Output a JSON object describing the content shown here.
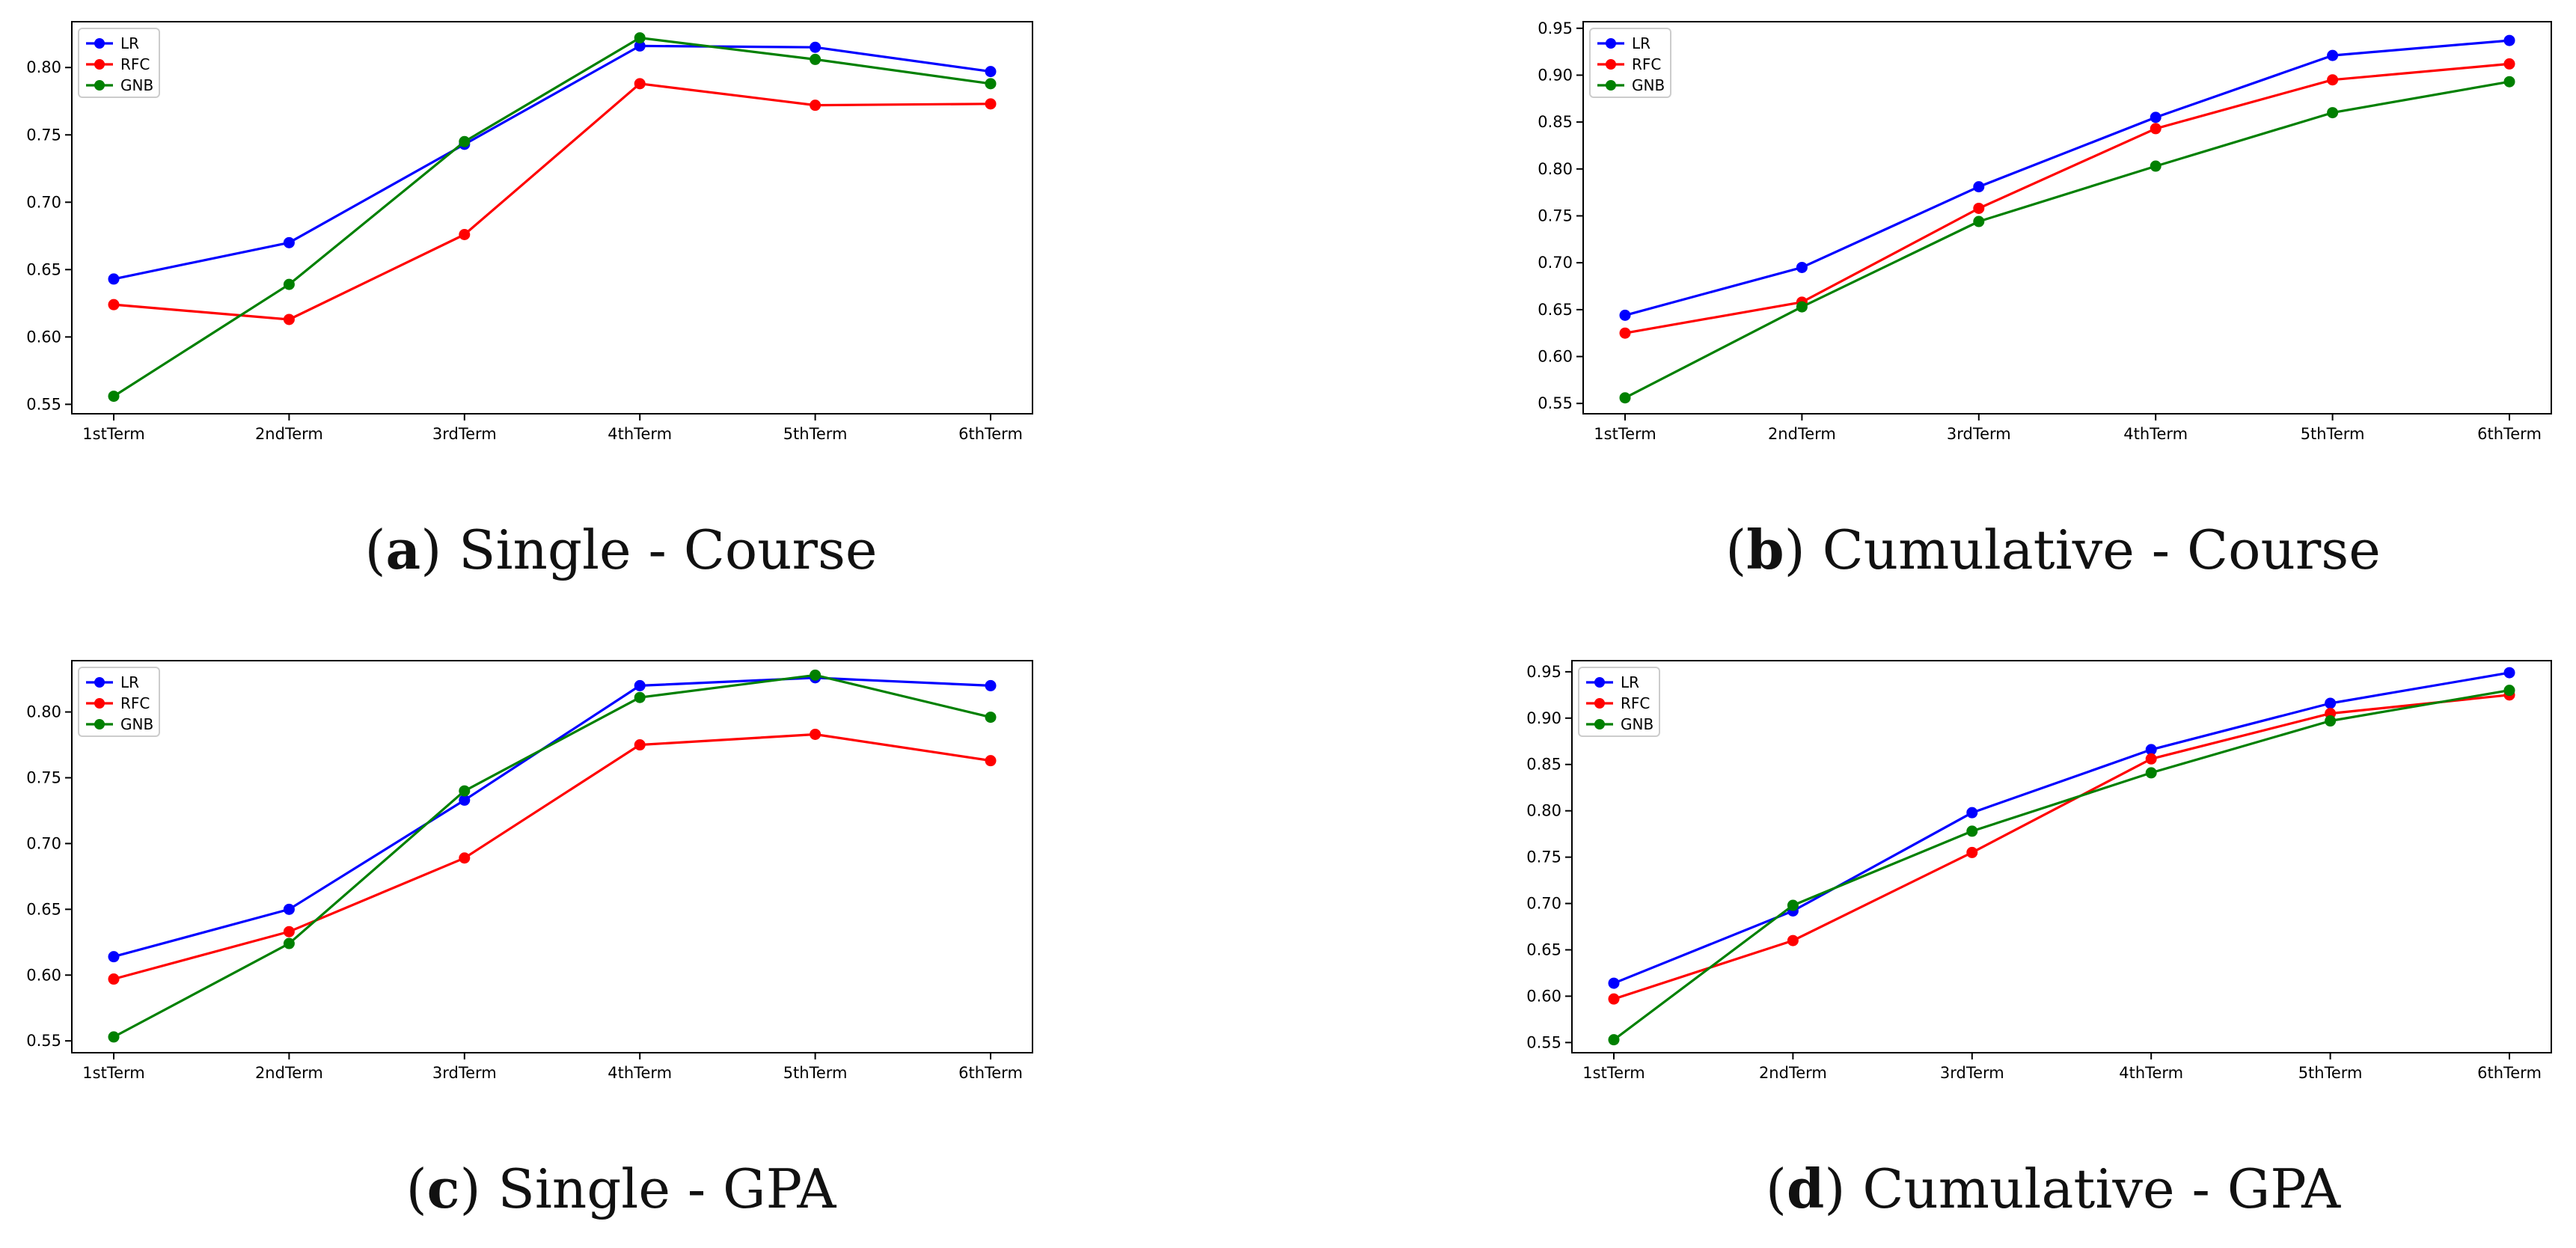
{
  "chart_data": [
    {
      "type": "line",
      "id": "a",
      "categories": [
        "1stTerm",
        "2ndTerm",
        "3rdTerm",
        "4thTerm",
        "5thTerm",
        "6thTerm"
      ],
      "series": [
        {
          "name": "LR",
          "color": "#0000ff",
          "values": [
            0.643,
            0.67,
            0.743,
            0.816,
            0.815,
            0.797
          ]
        },
        {
          "name": "RFC",
          "color": "#ff0000",
          "values": [
            0.624,
            0.613,
            0.676,
            0.788,
            0.772,
            0.773
          ]
        },
        {
          "name": "GNB",
          "color": "#008000",
          "values": [
            0.556,
            0.639,
            0.745,
            0.822,
            0.806,
            0.788
          ]
        }
      ],
      "ylim": [
        0.543,
        0.834
      ],
      "yticks": [
        0.55,
        0.6,
        0.65,
        0.7,
        0.75,
        0.8
      ],
      "ytick_labels": [
        "0.55",
        "0.60",
        "0.65",
        "0.70",
        "0.75",
        "0.80"
      ],
      "legend": "top-left",
      "caption_letter": "a",
      "caption_rest": " Single - Course"
    },
    {
      "type": "line",
      "id": "b",
      "categories": [
        "1stTerm",
        "2ndTerm",
        "3rdTerm",
        "4thTerm",
        "5thTerm",
        "6thTerm"
      ],
      "series": [
        {
          "name": "LR",
          "color": "#0000ff",
          "values": [
            0.644,
            0.695,
            0.781,
            0.855,
            0.921,
            0.937
          ]
        },
        {
          "name": "RFC",
          "color": "#ff0000",
          "values": [
            0.625,
            0.658,
            0.758,
            0.843,
            0.895,
            0.912
          ]
        },
        {
          "name": "GNB",
          "color": "#008000",
          "values": [
            0.556,
            0.653,
            0.744,
            0.803,
            0.86,
            0.893
          ]
        }
      ],
      "ylim": [
        0.539,
        0.957
      ],
      "yticks": [
        0.55,
        0.6,
        0.65,
        0.7,
        0.75,
        0.8,
        0.85,
        0.9,
        0.95
      ],
      "ytick_labels": [
        "0.55",
        "0.60",
        "0.65",
        "0.70",
        "0.75",
        "0.80",
        "0.85",
        "0.90",
        "0.95"
      ],
      "legend": "top-left",
      "caption_letter": "b",
      "caption_rest": " Cumulative - Course"
    },
    {
      "type": "line",
      "id": "c",
      "categories": [
        "1stTerm",
        "2ndTerm",
        "3rdTerm",
        "4thTerm",
        "5thTerm",
        "6thTerm"
      ],
      "series": [
        {
          "name": "LR",
          "color": "#0000ff",
          "values": [
            0.614,
            0.65,
            0.733,
            0.82,
            0.826,
            0.82
          ]
        },
        {
          "name": "RFC",
          "color": "#ff0000",
          "values": [
            0.597,
            0.633,
            0.689,
            0.775,
            0.783,
            0.763
          ]
        },
        {
          "name": "GNB",
          "color": "#008000",
          "values": [
            0.553,
            0.624,
            0.74,
            0.811,
            0.828,
            0.796
          ]
        }
      ],
      "ylim": [
        0.541,
        0.839
      ],
      "yticks": [
        0.55,
        0.6,
        0.65,
        0.7,
        0.75,
        0.8
      ],
      "ytick_labels": [
        "0.55",
        "0.60",
        "0.65",
        "0.70",
        "0.75",
        "0.80"
      ],
      "legend": "top-left",
      "caption_letter": "c",
      "caption_rest": " Single - GPA"
    },
    {
      "type": "line",
      "id": "d",
      "categories": [
        "1stTerm",
        "2ndTerm",
        "3rdTerm",
        "4thTerm",
        "5thTerm",
        "6thTerm"
      ],
      "series": [
        {
          "name": "LR",
          "color": "#0000ff",
          "values": [
            0.614,
            0.692,
            0.798,
            0.866,
            0.916,
            0.949
          ]
        },
        {
          "name": "RFC",
          "color": "#ff0000",
          "values": [
            0.597,
            0.66,
            0.755,
            0.856,
            0.905,
            0.925
          ]
        },
        {
          "name": "GNB",
          "color": "#008000",
          "values": [
            0.553,
            0.698,
            0.778,
            0.841,
            0.897,
            0.93
          ]
        }
      ],
      "ylim": [
        0.539,
        0.962
      ],
      "yticks": [
        0.55,
        0.6,
        0.65,
        0.7,
        0.75,
        0.8,
        0.85,
        0.9,
        0.95
      ],
      "ytick_labels": [
        "0.55",
        "0.60",
        "0.65",
        "0.70",
        "0.75",
        "0.80",
        "0.85",
        "0.90",
        "0.95"
      ],
      "legend": "top-left",
      "caption_letter": "d",
      "caption_rest": " Cumulative - GPA"
    }
  ]
}
